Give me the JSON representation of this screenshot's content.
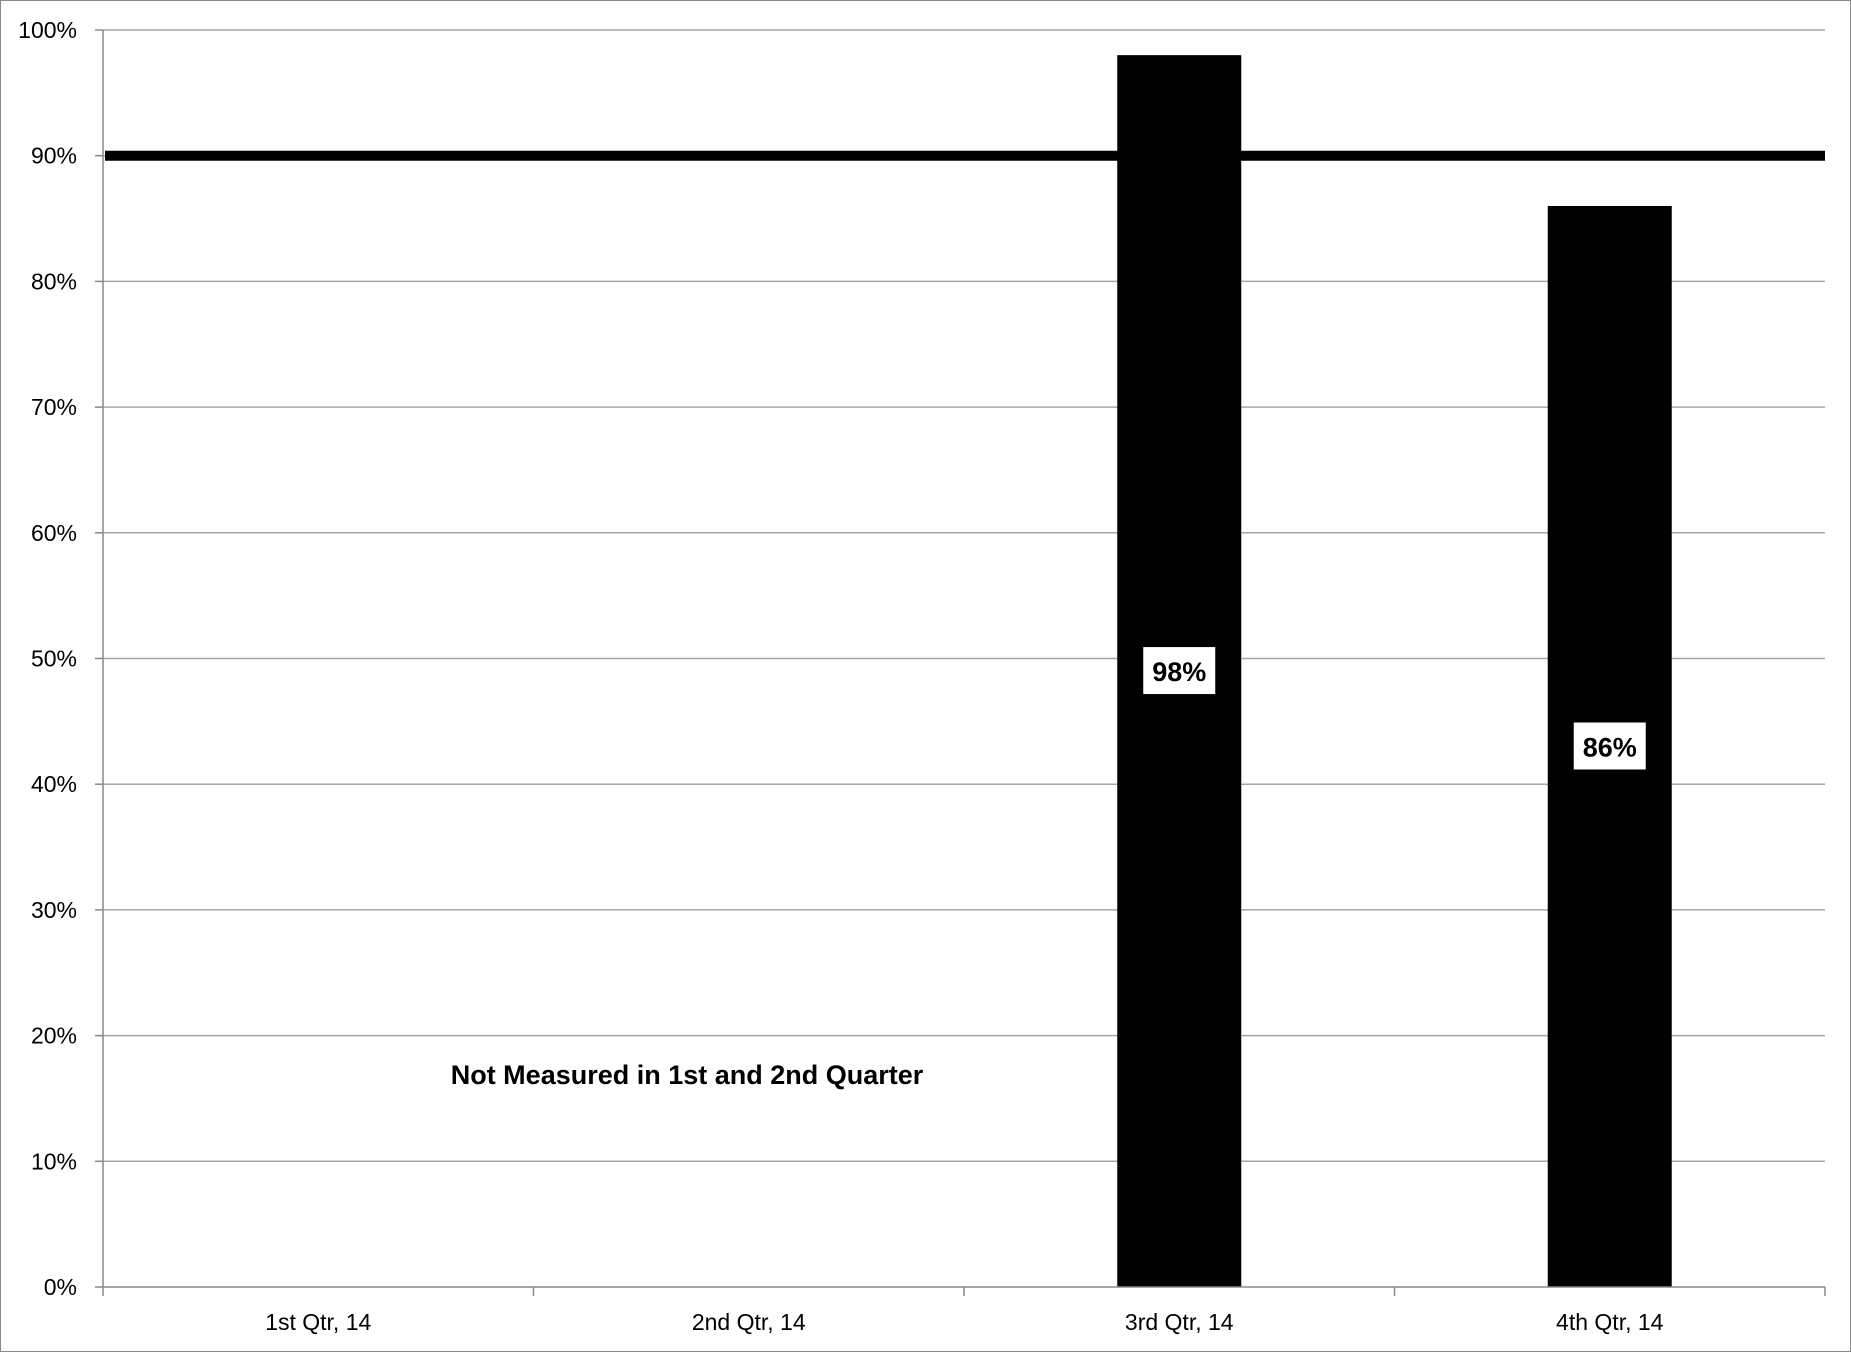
{
  "chart_data": {
    "type": "bar",
    "title": "",
    "xlabel": "",
    "ylabel": "",
    "categories": [
      "1st Qtr, 14",
      "2nd Qtr, 14",
      "3rd Qtr, 14",
      "4th Qtr, 14"
    ],
    "series": [
      {
        "values": [
          null,
          null,
          98,
          86
        ],
        "color": "#000000"
      }
    ],
    "data_labels": [
      "",
      "",
      "98%",
      "86%"
    ],
    "target_line": {
      "value": 90,
      "color": "#000000"
    },
    "ylim": [
      0,
      100
    ],
    "y_ticks": [
      0,
      10,
      20,
      30,
      40,
      50,
      60,
      70,
      80,
      90,
      100
    ],
    "y_tick_labels": [
      "0%",
      "10%",
      "20%",
      "30%",
      "40%",
      "50%",
      "60%",
      "70%",
      "80%",
      "90%",
      "100%"
    ],
    "grid": true,
    "legend": "none",
    "annotation": "Not Measured in 1st and 2nd Quarter",
    "grid_color": "#a6a6a6"
  }
}
